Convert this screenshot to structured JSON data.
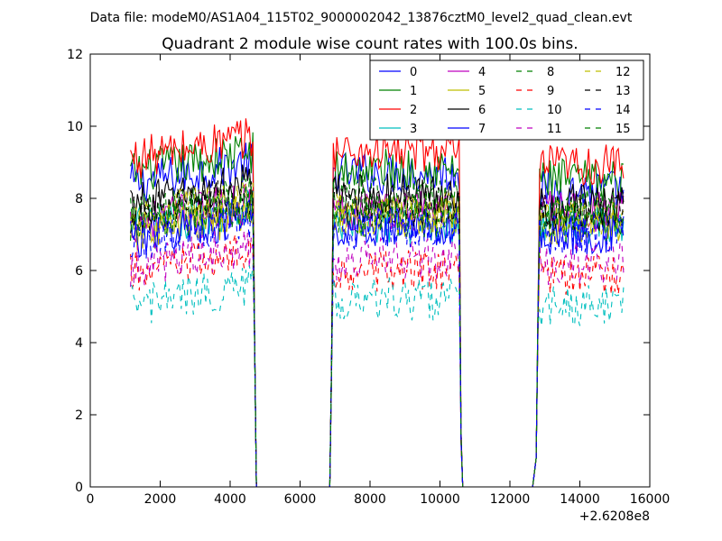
{
  "chart_data": {
    "type": "line",
    "suptitle": "Data file: modeM0/AS1A04_115T02_9000002042_13876cztM0_level2_quad_clean.evt",
    "title": "Quadrant 2 module wise count rates with 100.0s bins.",
    "xlabel": "",
    "ylabel": "",
    "x_offset_label": "+2.6208e8",
    "xlim": [
      0,
      16000
    ],
    "ylim": [
      0,
      12
    ],
    "xticks": [
      0,
      2000,
      4000,
      6000,
      8000,
      10000,
      12000,
      14000,
      16000
    ],
    "yticks": [
      0,
      2,
      4,
      6,
      8,
      10,
      12
    ],
    "grid": false,
    "legend_location": "upper right",
    "legend_columns": 4,
    "segments": [
      {
        "start": 1150,
        "end": 4650,
        "edge_values": {
          "rise_to": null,
          "fall": [
            [
              4700,
              4.0
            ],
            [
              4750,
              0.0
            ]
          ]
        }
      },
      {
        "start": 6950,
        "end": 10550,
        "edge_values": {
          "rise": [
            [
              6850,
              0.0
            ],
            [
              6900,
              3.5
            ]
          ],
          "fall": [
            [
              10600,
              1.2
            ],
            [
              10650,
              0.0
            ]
          ]
        }
      },
      {
        "start": 12850,
        "end": 15250,
        "edge_values": {
          "rise": [
            [
              12650,
              0.0
            ],
            [
              12750,
              0.8
            ],
            [
              12800,
              4.5
            ]
          ],
          "fall": []
        }
      }
    ],
    "gaps": [
      [
        4750,
        6850
      ],
      [
        10650,
        12650
      ]
    ],
    "series": [
      {
        "name": "0",
        "color": "#0000ff",
        "style": "solid",
        "base": [
          8.6,
          8.7,
          8.2
        ]
      },
      {
        "name": "1",
        "color": "#008000",
        "style": "solid",
        "base": [
          8.9,
          8.8,
          8.5
        ]
      },
      {
        "name": "2",
        "color": "#ff0000",
        "style": "solid",
        "base": [
          9.3,
          9.3,
          8.9
        ]
      },
      {
        "name": "3",
        "color": "#00bfbf",
        "style": "solid",
        "base": [
          7.4,
          7.3,
          7.3
        ]
      },
      {
        "name": "4",
        "color": "#bf00bf",
        "style": "solid",
        "base": [
          7.5,
          7.7,
          7.6
        ]
      },
      {
        "name": "5",
        "color": "#bfbf00",
        "style": "solid",
        "base": [
          7.2,
          7.5,
          7.3
        ]
      },
      {
        "name": "6",
        "color": "#000000",
        "style": "solid",
        "base": [
          8.0,
          8.1,
          7.8
        ]
      },
      {
        "name": "7",
        "color": "#0000ff",
        "style": "solid",
        "base": [
          7.1,
          7.2,
          7.0
        ]
      },
      {
        "name": "8",
        "color": "#008000",
        "style": "dashed",
        "base": [
          7.7,
          8.0,
          7.7
        ]
      },
      {
        "name": "9",
        "color": "#ff0000",
        "style": "dashed",
        "base": [
          6.1,
          6.0,
          5.9
        ]
      },
      {
        "name": "10",
        "color": "#00bfbf",
        "style": "dashed",
        "base": [
          5.2,
          5.2,
          5.0
        ]
      },
      {
        "name": "11",
        "color": "#bf00bf",
        "style": "dashed",
        "base": [
          6.3,
          6.3,
          6.2
        ]
      },
      {
        "name": "12",
        "color": "#bfbf00",
        "style": "dashed",
        "base": [
          7.6,
          7.6,
          7.5
        ]
      },
      {
        "name": "13",
        "color": "#000000",
        "style": "dashed",
        "base": [
          7.7,
          7.8,
          7.6
        ]
      },
      {
        "name": "14",
        "color": "#0000ff",
        "style": "dashed",
        "base": [
          7.0,
          7.2,
          7.1
        ]
      },
      {
        "name": "15",
        "color": "#008000",
        "style": "dashed",
        "base": [
          7.4,
          7.5,
          7.4
        ]
      }
    ]
  }
}
